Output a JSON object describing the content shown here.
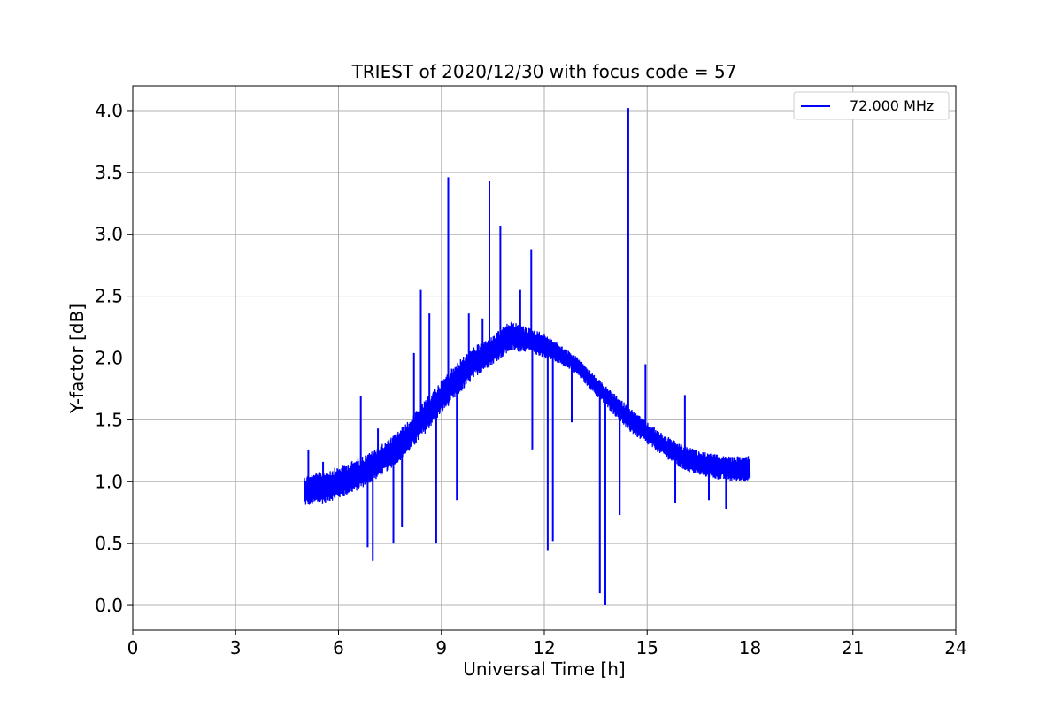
{
  "chart_data": {
    "type": "line",
    "title": "TRIEST of 2020/12/30 with focus code = 57",
    "xlabel": "Universal Time [h]",
    "ylabel": "Y-factor [dB]",
    "xlim": [
      0,
      24
    ],
    "ylim": [
      -0.2,
      4.2
    ],
    "xticks": [
      0,
      3,
      6,
      9,
      12,
      15,
      18,
      21,
      24
    ],
    "yticks": [
      0.0,
      0.5,
      1.0,
      1.5,
      2.0,
      2.5,
      3.0,
      3.5,
      4.0
    ],
    "xtick_labels": [
      "0",
      "3",
      "6",
      "9",
      "12",
      "15",
      "18",
      "21",
      "24"
    ],
    "ytick_labels": [
      "0.0",
      "0.5",
      "1.0",
      "1.5",
      "2.0",
      "2.5",
      "3.0",
      "3.5",
      "4.0"
    ],
    "grid": true,
    "legend_position": "top-right",
    "series": [
      {
        "name": "72.000 MHz",
        "color": "#0000ff",
        "envelope": {
          "x": [
            5.0,
            5.5,
            6.0,
            6.5,
            7.0,
            7.5,
            8.0,
            8.5,
            9.0,
            9.5,
            10.0,
            10.5,
            11.0,
            11.5,
            12.0,
            12.5,
            13.0,
            13.5,
            14.0,
            14.5,
            15.0,
            15.5,
            16.0,
            16.5,
            17.0,
            17.5,
            18.0
          ],
          "lower": [
            0.8,
            0.82,
            0.86,
            0.92,
            1.0,
            1.1,
            1.22,
            1.38,
            1.55,
            1.7,
            1.85,
            1.95,
            2.05,
            2.05,
            2.0,
            1.95,
            1.85,
            1.7,
            1.55,
            1.4,
            1.3,
            1.2,
            1.1,
            1.05,
            1.02,
            1.0,
            1.0
          ],
          "upper": [
            1.05,
            1.08,
            1.12,
            1.18,
            1.25,
            1.35,
            1.48,
            1.65,
            1.82,
            1.98,
            2.1,
            2.18,
            2.3,
            2.25,
            2.2,
            2.1,
            2.0,
            1.85,
            1.72,
            1.6,
            1.48,
            1.38,
            1.3,
            1.25,
            1.22,
            1.2,
            1.22
          ]
        },
        "spikes": [
          {
            "x": 5.12,
            "y": 1.26
          },
          {
            "x": 5.55,
            "y": 1.16
          },
          {
            "x": 6.65,
            "y": 1.69
          },
          {
            "x": 6.85,
            "y": 0.47
          },
          {
            "x": 7.0,
            "y": 0.36
          },
          {
            "x": 7.15,
            "y": 1.43
          },
          {
            "x": 7.6,
            "y": 0.5
          },
          {
            "x": 7.85,
            "y": 0.63
          },
          {
            "x": 8.2,
            "y": 2.04
          },
          {
            "x": 8.4,
            "y": 2.55
          },
          {
            "x": 8.65,
            "y": 2.36
          },
          {
            "x": 8.85,
            "y": 0.5
          },
          {
            "x": 9.2,
            "y": 3.46
          },
          {
            "x": 9.45,
            "y": 0.85
          },
          {
            "x": 9.8,
            "y": 2.36
          },
          {
            "x": 10.2,
            "y": 2.32
          },
          {
            "x": 10.4,
            "y": 3.43
          },
          {
            "x": 10.72,
            "y": 3.07
          },
          {
            "x": 11.3,
            "y": 2.55
          },
          {
            "x": 11.62,
            "y": 2.88
          },
          {
            "x": 11.65,
            "y": 1.26
          },
          {
            "x": 12.1,
            "y": 0.44
          },
          {
            "x": 12.25,
            "y": 0.52
          },
          {
            "x": 12.8,
            "y": 1.48
          },
          {
            "x": 13.62,
            "y": 0.1
          },
          {
            "x": 13.78,
            "y": 0.0
          },
          {
            "x": 14.2,
            "y": 0.73
          },
          {
            "x": 14.45,
            "y": 4.02
          },
          {
            "x": 14.95,
            "y": 1.95
          },
          {
            "x": 15.82,
            "y": 0.83
          },
          {
            "x": 16.1,
            "y": 1.7
          },
          {
            "x": 16.8,
            "y": 0.85
          },
          {
            "x": 17.3,
            "y": 0.78
          }
        ]
      }
    ]
  }
}
